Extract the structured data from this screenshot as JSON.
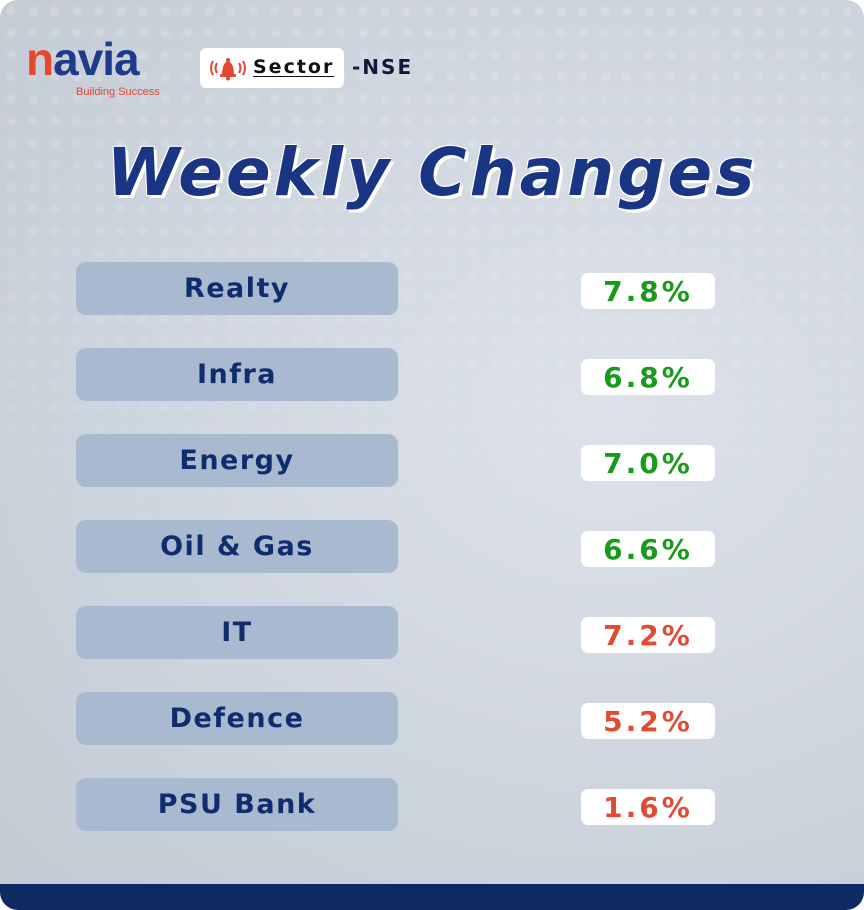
{
  "brand": {
    "logo_text": "navia",
    "tagline": "Building Success",
    "icon": "alarm-bell-icon",
    "color_primary": "#1d3b8a",
    "color_accent": "#e4472f"
  },
  "header": {
    "sector_label": "Sector",
    "exchange": "-NSE"
  },
  "title": "Weekly Changes",
  "colors": {
    "positive": "#1a9a1a",
    "negative": "#e24a33",
    "sector_box": "#a9b9cf",
    "sector_text": "#0f2d6e",
    "bottom_bar": "#0f2a63"
  },
  "sectors": [
    {
      "name": "Realty",
      "change": "7.8%",
      "trend": "positive"
    },
    {
      "name": "Infra",
      "change": "6.8%",
      "trend": "positive"
    },
    {
      "name": "Energy",
      "change": "7.0%",
      "trend": "positive"
    },
    {
      "name": "Oil & Gas",
      "change": "6.6%",
      "trend": "positive"
    },
    {
      "name": "IT",
      "change": "7.2%",
      "trend": "negative"
    },
    {
      "name": "Defence",
      "change": "5.2%",
      "trend": "negative"
    },
    {
      "name": "PSU Bank",
      "change": "1.6%",
      "trend": "negative"
    }
  ]
}
